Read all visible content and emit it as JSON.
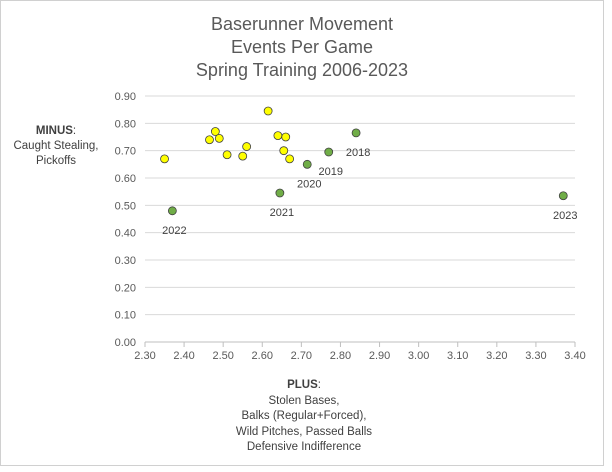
{
  "chart_data": {
    "type": "scatter",
    "title_lines": [
      "Baserunner Movement",
      "Events Per Game",
      "Spring Training 2006-2023"
    ],
    "ylabel": {
      "bold": "MINUS",
      "lines": [
        ":",
        "Caught Stealing,",
        "Pickoffs"
      ]
    },
    "xlabel": {
      "bold": "PLUS",
      "lines": [
        ":",
        "Stolen Bases,",
        "Balks (Regular+Forced),",
        "Wild Pitches, Passed Balls",
        "Defensive Indifference"
      ]
    },
    "xlim": [
      2.3,
      3.4
    ],
    "ylim": [
      0.0,
      0.9
    ],
    "x_ticks": [
      "2.30",
      "2.40",
      "2.50",
      "2.60",
      "2.70",
      "2.80",
      "2.90",
      "3.00",
      "3.10",
      "3.20",
      "3.30",
      "3.40"
    ],
    "y_ticks": [
      "0.00",
      "0.10",
      "0.20",
      "0.30",
      "0.40",
      "0.50",
      "0.60",
      "0.70",
      "0.80",
      "0.90"
    ],
    "grid": "horizontal",
    "colors": {
      "yellow_fill": "#ffff00",
      "green_fill": "#70ad47",
      "marker_outline": "#404040",
      "gridline": "#d9d9d9",
      "axis_text": "#595959"
    },
    "series": [
      {
        "color": "yellow",
        "points": [
          {
            "x": 2.35,
            "y": 0.67
          },
          {
            "x": 2.465,
            "y": 0.74
          },
          {
            "x": 2.48,
            "y": 0.77
          },
          {
            "x": 2.49,
            "y": 0.745
          },
          {
            "x": 2.51,
            "y": 0.685
          },
          {
            "x": 2.55,
            "y": 0.68
          },
          {
            "x": 2.56,
            "y": 0.715
          },
          {
            "x": 2.615,
            "y": 0.845
          },
          {
            "x": 2.64,
            "y": 0.755
          },
          {
            "x": 2.655,
            "y": 0.7
          },
          {
            "x": 2.66,
            "y": 0.75
          },
          {
            "x": 2.67,
            "y": 0.67
          }
        ]
      },
      {
        "color": "green",
        "points": [
          {
            "x": 2.37,
            "y": 0.48,
            "label": "2022"
          },
          {
            "x": 2.645,
            "y": 0.545,
            "label": "2021"
          },
          {
            "x": 2.715,
            "y": 0.65,
            "label": "2020"
          },
          {
            "x": 2.77,
            "y": 0.695,
            "label": "2019"
          },
          {
            "x": 2.84,
            "y": 0.765,
            "label": "2018"
          },
          {
            "x": 3.37,
            "y": 0.535,
            "label": "2023"
          }
        ]
      }
    ]
  }
}
